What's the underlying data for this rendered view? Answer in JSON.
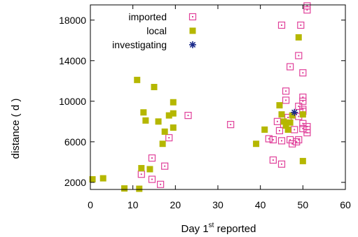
{
  "chart_data": {
    "type": "scatter",
    "xlabel_main": "Day 1",
    "xlabel_sup": "st",
    "xlabel_rest": " reported",
    "ylabel": "distance ( d )",
    "xlim": [
      0,
      60
    ],
    "ylim": [
      1300,
      19500
    ],
    "xticks": [
      0,
      10,
      20,
      30,
      40,
      50,
      60
    ],
    "yticks": [
      2000,
      6000,
      10000,
      14000,
      18000
    ],
    "grid": false,
    "legend_position": "top-right",
    "series": [
      {
        "name": "imported",
        "marker": "open-square-dot",
        "color": "#e0409a",
        "points": [
          [
            12,
            2800
          ],
          [
            14.5,
            4400
          ],
          [
            16.5,
            1800
          ],
          [
            17.5,
            3600
          ],
          [
            18.5,
            6400
          ],
          [
            14.5,
            2300
          ],
          [
            23,
            8600
          ],
          [
            33,
            7700
          ],
          [
            42,
            6300
          ],
          [
            43,
            6200
          ],
          [
            43,
            4200
          ],
          [
            44,
            8000
          ],
          [
            44.5,
            7100
          ],
          [
            45,
            3800
          ],
          [
            45,
            6100
          ],
          [
            45.5,
            7700
          ],
          [
            46,
            11000
          ],
          [
            46,
            10100
          ],
          [
            46.5,
            8400
          ],
          [
            47,
            6200
          ],
          [
            47,
            13400
          ],
          [
            47.5,
            5800
          ],
          [
            48,
            7200
          ],
          [
            48.5,
            6000
          ],
          [
            49,
            9500
          ],
          [
            49,
            8500
          ],
          [
            49,
            6200
          ],
          [
            49,
            14500
          ],
          [
            49.5,
            17500
          ],
          [
            50,
            10400
          ],
          [
            50,
            10000
          ],
          [
            50,
            9200
          ],
          [
            50,
            9000
          ],
          [
            50,
            7800
          ],
          [
            50,
            7300
          ],
          [
            50,
            12800
          ],
          [
            51,
            7500
          ],
          [
            51,
            7200
          ],
          [
            51,
            6900
          ],
          [
            51,
            19400
          ],
          [
            51,
            19000
          ],
          [
            45,
            17500
          ]
        ]
      },
      {
        "name": "local",
        "marker": "filled-square",
        "color": "#b5b700",
        "points": [
          [
            0.5,
            2300
          ],
          [
            3,
            2400
          ],
          [
            8,
            1400
          ],
          [
            11,
            12100
          ],
          [
            11.5,
            1300
          ],
          [
            12,
            3400
          ],
          [
            12.5,
            8900
          ],
          [
            13,
            8100
          ],
          [
            14,
            3300
          ],
          [
            15,
            11400
          ],
          [
            16,
            8000
          ],
          [
            17,
            5800
          ],
          [
            17.5,
            7000
          ],
          [
            18.5,
            8600
          ],
          [
            19.5,
            9900
          ],
          [
            19.5,
            8800
          ],
          [
            19.5,
            7400
          ],
          [
            39,
            5800
          ],
          [
            41,
            7200
          ],
          [
            44.5,
            9600
          ],
          [
            45,
            8700
          ],
          [
            45.5,
            8000
          ],
          [
            46,
            7600
          ],
          [
            46.5,
            7200
          ],
          [
            47,
            7900
          ],
          [
            47.5,
            8600
          ],
          [
            49,
            16300
          ],
          [
            50,
            4100
          ],
          [
            50,
            8700
          ]
        ]
      },
      {
        "name": "investigating",
        "marker": "star",
        "color": "#1a2a8a",
        "points": [
          [
            48,
            8900
          ]
        ]
      }
    ]
  }
}
